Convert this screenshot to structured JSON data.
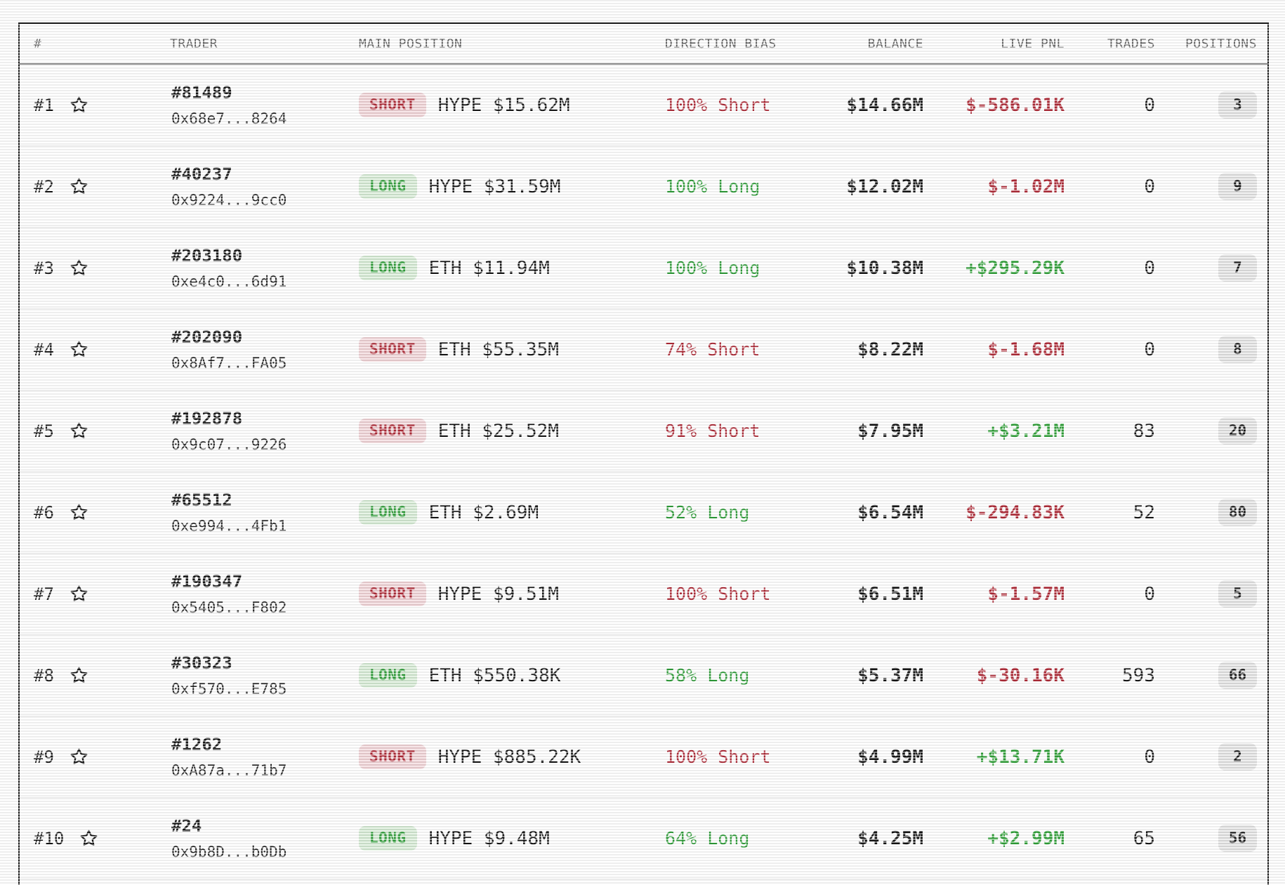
{
  "colors": {
    "red_text": "#b02a37",
    "green_text": "#2e9e38",
    "short_badge_bg": "#f0d2d6",
    "long_badge_bg": "#d5ebd4",
    "positions_pill_bg": "#e3e3e3"
  },
  "table": {
    "columns": [
      {
        "key": "rank",
        "label": "#"
      },
      {
        "key": "trader",
        "label": "TRADER"
      },
      {
        "key": "main_position",
        "label": "MAIN POSITION"
      },
      {
        "key": "direction_bias",
        "label": "DIRECTION BIAS"
      },
      {
        "key": "balance",
        "label": "BALANCE"
      },
      {
        "key": "live_pnl",
        "label": "LIVE PNL"
      },
      {
        "key": "trades",
        "label": "TRADES"
      },
      {
        "key": "positions",
        "label": "POSITIONS"
      }
    ],
    "rows": [
      {
        "rank": "#1",
        "trader_id": "#81489",
        "address": "0x68e7...8264",
        "side": "SHORT",
        "main_position": "HYPE $15.62M",
        "bias": "100% Short",
        "balance": "$14.66M",
        "pnl": "$-586.01K",
        "trades": "0",
        "positions": "3"
      },
      {
        "rank": "#2",
        "trader_id": "#40237",
        "address": "0x9224...9cc0",
        "side": "LONG",
        "main_position": "HYPE $31.59M",
        "bias": "100% Long",
        "balance": "$12.02M",
        "pnl": "$-1.02M",
        "trades": "0",
        "positions": "9"
      },
      {
        "rank": "#3",
        "trader_id": "#203180",
        "address": "0xe4c0...6d91",
        "side": "LONG",
        "main_position": "ETH $11.94M",
        "bias": "100% Long",
        "balance": "$10.38M",
        "pnl": "+$295.29K",
        "trades": "0",
        "positions": "7"
      },
      {
        "rank": "#4",
        "trader_id": "#202090",
        "address": "0x8Af7...FA05",
        "side": "SHORT",
        "main_position": "ETH $55.35M",
        "bias": "74% Short",
        "balance": "$8.22M",
        "pnl": "$-1.68M",
        "trades": "0",
        "positions": "8"
      },
      {
        "rank": "#5",
        "trader_id": "#192878",
        "address": "0x9c07...9226",
        "side": "SHORT",
        "main_position": "ETH $25.52M",
        "bias": "91% Short",
        "balance": "$7.95M",
        "pnl": "+$3.21M",
        "trades": "83",
        "positions": "20"
      },
      {
        "rank": "#6",
        "trader_id": "#65512",
        "address": "0xe994...4Fb1",
        "side": "LONG",
        "main_position": "ETH $2.69M",
        "bias": "52% Long",
        "balance": "$6.54M",
        "pnl": "$-294.83K",
        "trades": "52",
        "positions": "80"
      },
      {
        "rank": "#7",
        "trader_id": "#190347",
        "address": "0x5405...F802",
        "side": "SHORT",
        "main_position": "HYPE $9.51M",
        "bias": "100% Short",
        "balance": "$6.51M",
        "pnl": "$-1.57M",
        "trades": "0",
        "positions": "5"
      },
      {
        "rank": "#8",
        "trader_id": "#30323",
        "address": "0xf570...E785",
        "side": "LONG",
        "main_position": "ETH $550.38K",
        "bias": "58% Long",
        "balance": "$5.37M",
        "pnl": "$-30.16K",
        "trades": "593",
        "positions": "66"
      },
      {
        "rank": "#9",
        "trader_id": "#1262",
        "address": "0xA87a...71b7",
        "side": "SHORT",
        "main_position": "HYPE $885.22K",
        "bias": "100% Short",
        "balance": "$4.99M",
        "pnl": "+$13.71K",
        "trades": "0",
        "positions": "2"
      },
      {
        "rank": "#10",
        "trader_id": "#24",
        "address": "0x9b8D...b0Db",
        "side": "LONG",
        "main_position": "HYPE $9.48M",
        "bias": "64% Long",
        "balance": "$4.25M",
        "pnl": "+$2.99M",
        "trades": "65",
        "positions": "56"
      }
    ]
  }
}
